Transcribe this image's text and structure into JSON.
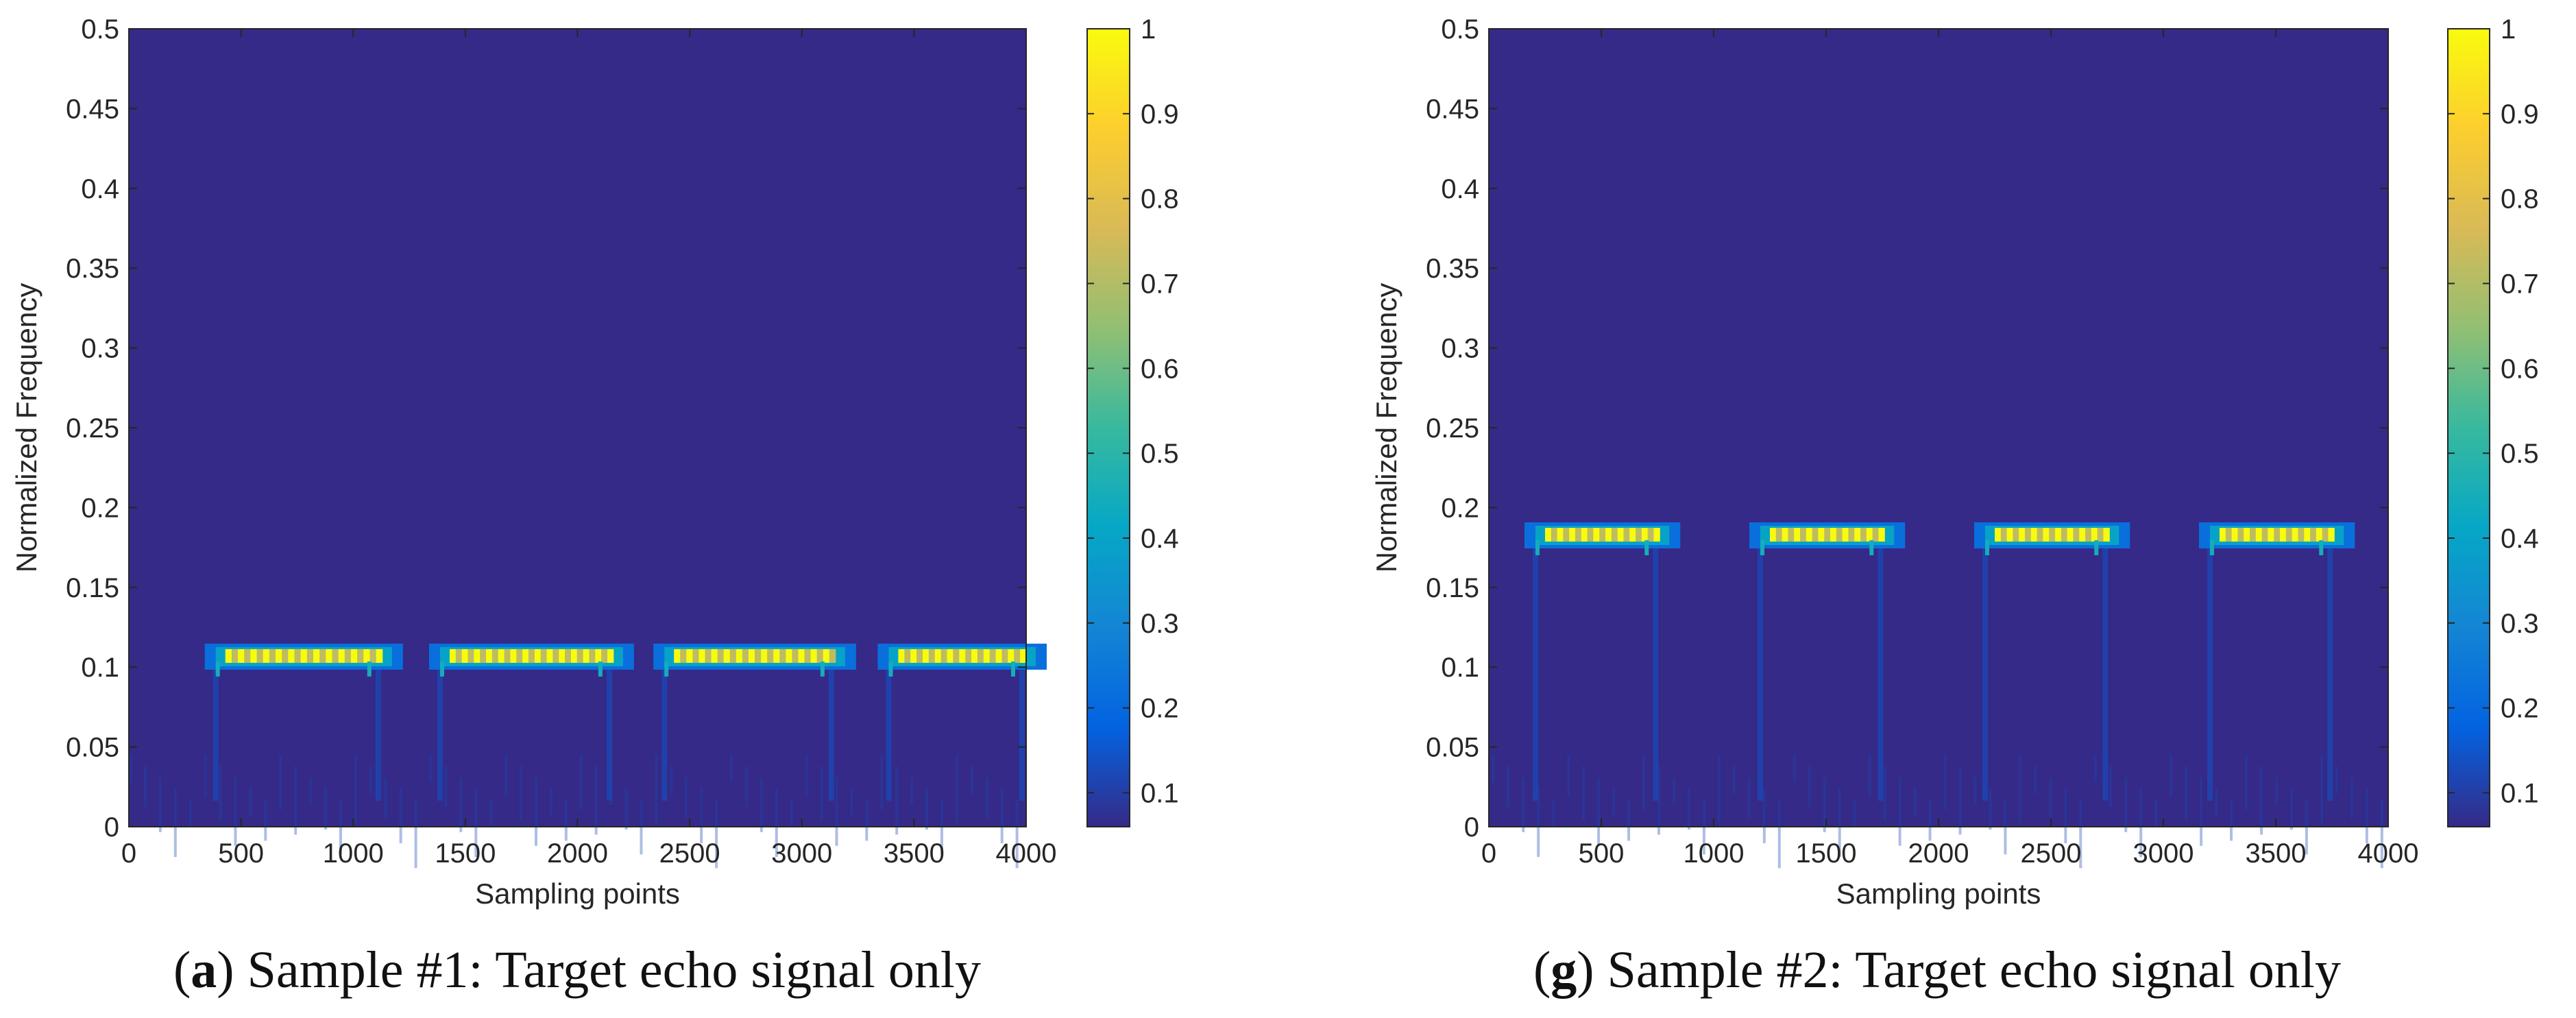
{
  "chart_data": [
    {
      "type": "heatmap",
      "id": "a",
      "caption": {
        "letter": "a",
        "text": "Sample #1: Target echo signal only"
      },
      "xlabel": "Sampling points",
      "ylabel": "Normalized Frequency",
      "xlim": [
        0,
        4000
      ],
      "ylim": [
        0,
        0.5
      ],
      "xticks": [
        "0",
        "500",
        "1000",
        "1500",
        "2000",
        "2500",
        "3000",
        "3500",
        "4000"
      ],
      "yticks": [
        "0",
        "0.05",
        "0.1",
        "0.15",
        "0.2",
        "0.25",
        "0.3",
        "0.35",
        "0.4",
        "0.45",
        "0.5"
      ],
      "colorbar": {
        "ticks": [
          "0.1",
          "0.2",
          "0.3",
          "0.4",
          "0.5",
          "0.6",
          "0.7",
          "0.8",
          "0.9",
          "1"
        ],
        "range": [
          0.06,
          1
        ]
      },
      "background_value": 0.06,
      "bands": [
        {
          "x_start": 430,
          "x_end": 1130,
          "frequency": 0.107,
          "peak": 1.0
        },
        {
          "x_start": 1430,
          "x_end": 2160,
          "frequency": 0.107,
          "peak": 1.0
        },
        {
          "x_start": 2430,
          "x_end": 3150,
          "frequency": 0.107,
          "peak": 1.0
        },
        {
          "x_start": 3430,
          "x_end": 4000,
          "frequency": 0.107,
          "peak": 1.0
        }
      ]
    },
    {
      "type": "heatmap",
      "id": "g",
      "caption": {
        "letter": "g",
        "text": "Sample #2: Target echo signal only"
      },
      "xlabel": "Sampling points",
      "ylabel": "Normalized Frequency",
      "xlim": [
        0,
        4000
      ],
      "ylim": [
        0,
        0.5
      ],
      "xticks": [
        "0",
        "500",
        "1000",
        "1500",
        "2000",
        "2500",
        "3000",
        "3500",
        "4000"
      ],
      "yticks": [
        "0",
        "0.05",
        "0.1",
        "0.15",
        "0.2",
        "0.25",
        "0.3",
        "0.35",
        "0.4",
        "0.45",
        "0.5"
      ],
      "colorbar": {
        "ticks": [
          "0.1",
          "0.2",
          "0.3",
          "0.4",
          "0.5",
          "0.6",
          "0.7",
          "0.8",
          "0.9",
          "1"
        ],
        "range": [
          0.06,
          1
        ]
      },
      "background_value": 0.06,
      "bands": [
        {
          "x_start": 250,
          "x_end": 760,
          "frequency": 0.183,
          "peak": 1.0
        },
        {
          "x_start": 1250,
          "x_end": 1760,
          "frequency": 0.183,
          "peak": 1.0
        },
        {
          "x_start": 2250,
          "x_end": 2760,
          "frequency": 0.183,
          "peak": 1.0
        },
        {
          "x_start": 3250,
          "x_end": 3760,
          "frequency": 0.183,
          "peak": 1.0
        }
      ]
    }
  ],
  "colors": {
    "background": "#352a87",
    "axis": "#262626",
    "parula": [
      "#352a87",
      "#0363e1",
      "#1485d4",
      "#06a7c6",
      "#38b99e",
      "#92bf73",
      "#d9ba56",
      "#fcce2e",
      "#f9fb0e"
    ]
  }
}
